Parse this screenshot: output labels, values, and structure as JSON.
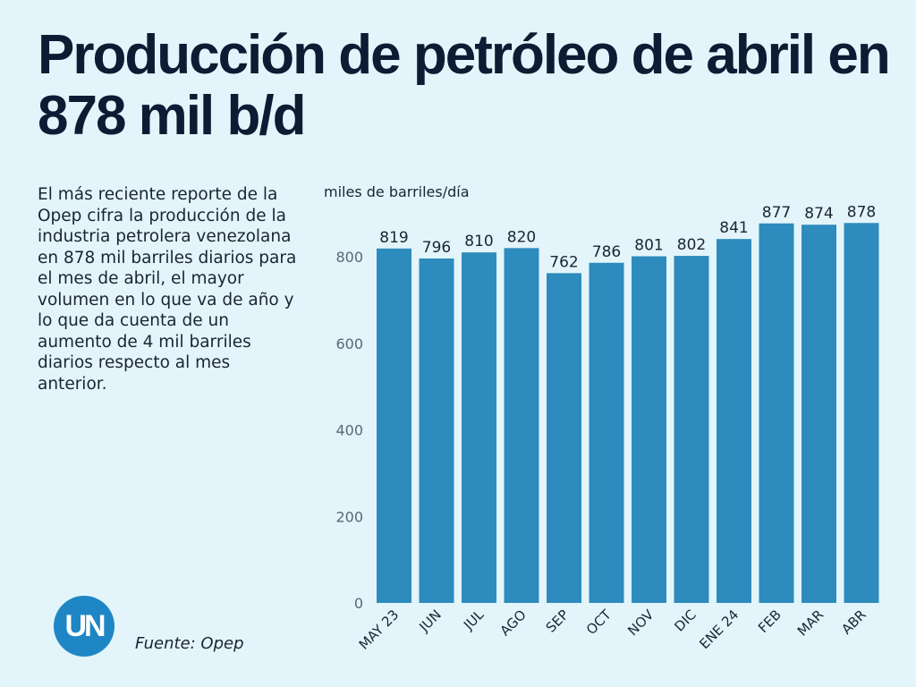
{
  "title": "Producción de petróleo de abril en 878 mil b/d",
  "description": "El más reciente reporte de la Opep cifra la producción de la industria petrolera venezolana en 878 mil barriles diarios para el mes de abril, el mayor volumen en lo que va de año y lo que da cuenta de un aumento de 4 mil barriles diarios respecto al mes anterior.",
  "source": "Fuente: Opep",
  "logo_text": "UN",
  "colors": {
    "bar": "#2e8bbd",
    "background": "#e3f5fa",
    "title": "#0d1b33"
  },
  "chart_data": {
    "type": "bar",
    "title": "",
    "ylabel": "miles de barriles/día",
    "xlabel": "",
    "categories": [
      "MAY 23",
      "JUN",
      "JUL",
      "AGO",
      "SEP",
      "OCT",
      "NOV",
      "DIC",
      "ENE 24",
      "FEB",
      "MAR",
      "ABR"
    ],
    "values": [
      819,
      796,
      810,
      820,
      762,
      786,
      801,
      802,
      841,
      877,
      874,
      878
    ],
    "yticks": [
      0,
      200,
      400,
      600,
      800
    ],
    "ylim": [
      0,
      900
    ],
    "grid": false,
    "legend": "none"
  }
}
